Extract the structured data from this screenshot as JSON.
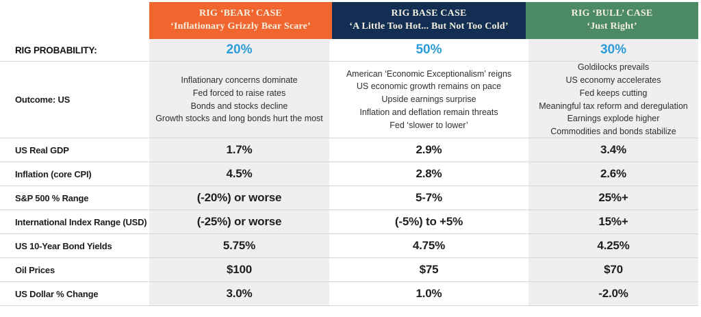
{
  "palette": {
    "bear_header": "#f1662f",
    "base_header": "#122e52",
    "bull_header": "#4c8a64",
    "body_shade": "#efefef",
    "probability_blue": "#2b9cd8",
    "separator": "#d6d6d6"
  },
  "table": {
    "row_labels": {
      "probability": "RIG PROBABILITY:",
      "outcome": "Outcome: US",
      "gdp": "US Real GDP",
      "inflation": "Inflation (core CPI)",
      "sp500": "S&P 500 % Range",
      "intl": "International Index Range (USD)",
      "bond": "US 10-Year Bond Yields",
      "oil": "Oil Prices",
      "dollar": "US Dollar % Change"
    },
    "columns": [
      {
        "id": "bear",
        "title": "RIG ‘BEAR’ CASE",
        "subtitle": "‘Inflationary Grizzly Bear Scare’",
        "probability": "20%",
        "outcome": "Inflationary concerns dominate\nFed forced to raise rates\nBonds and stocks decline\nGrowth stocks and long bonds hurt the most",
        "values": [
          "1.7%",
          "4.5%",
          "(-20%) or worse",
          "(-25%) or worse",
          "5.75%",
          "$100",
          "3.0%"
        ]
      },
      {
        "id": "base",
        "title": "RIG BASE CASE",
        "subtitle": "‘A Little Too Hot... But Not Too Cold’",
        "probability": "50%",
        "outcome": "American ‘Economic Exceptionalism’ reigns\nUS economic growth remains on pace\nUpside earnings surprise\nInflation and deflation remain threats\nFed ‘slower to lower’",
        "values": [
          "2.9%",
          "2.8%",
          "5-7%",
          "(-5%) to +5%",
          "4.75%",
          "$75",
          "1.0%"
        ]
      },
      {
        "id": "bull",
        "title": "RIG ‘BULL’ CASE",
        "subtitle": "‘Just Right’",
        "probability": "30%",
        "outcome": "Goldilocks prevails\nUS economy accelerates\nFed keeps cutting\nMeaningful tax reform and deregulation\nEarnings explode higher\nCommodities and bonds stabilize",
        "values": [
          "3.4%",
          "2.6%",
          "25%+",
          "15%+",
          "4.25%",
          "$70",
          "-2.0%"
        ]
      }
    ]
  },
  "chart_data": {
    "type": "table",
    "title": "RIG Scenario Cases",
    "columns": [
      "",
      "RIG ‘BEAR’ CASE ‘Inflationary Grizzly Bear Scare’",
      "RIG BASE CASE ‘A Little Too Hot... But Not Too Cold’",
      "RIG ‘BULL’ CASE ‘Just Right’"
    ],
    "rows": [
      [
        "RIG PROBABILITY:",
        "20%",
        "50%",
        "30%"
      ],
      [
        "Outcome: US",
        "Inflationary concerns dominate; Fed forced to raise rates; Bonds and stocks decline; Growth stocks and long bonds hurt the most",
        "American ‘Economic Exceptionalism’ reigns; US economic growth remains on pace; Upside earnings surprise; Inflation and deflation remain threats; Fed ‘slower to lower’",
        "Goldilocks prevails; US economy accelerates; Fed keeps cutting; Meaningful tax reform and deregulation; Earnings explode higher; Commodities and bonds stabilize"
      ],
      [
        "US Real GDP",
        "1.7%",
        "2.9%",
        "3.4%"
      ],
      [
        "Inflation (core CPI)",
        "4.5%",
        "2.8%",
        "2.6%"
      ],
      [
        "S&P 500 % Range",
        "(-20%) or worse",
        "5-7%",
        "25%+"
      ],
      [
        "International Index Range (USD)",
        "(-25%) or worse",
        "(-5%) to +5%",
        "15%+"
      ],
      [
        "US 10-Year Bond Yields",
        "5.75%",
        "4.75%",
        "4.25%"
      ],
      [
        "Oil Prices",
        "$100",
        "$75",
        "$70"
      ],
      [
        "US Dollar % Change",
        "3.0%",
        "1.0%",
        "-2.0%"
      ]
    ]
  }
}
